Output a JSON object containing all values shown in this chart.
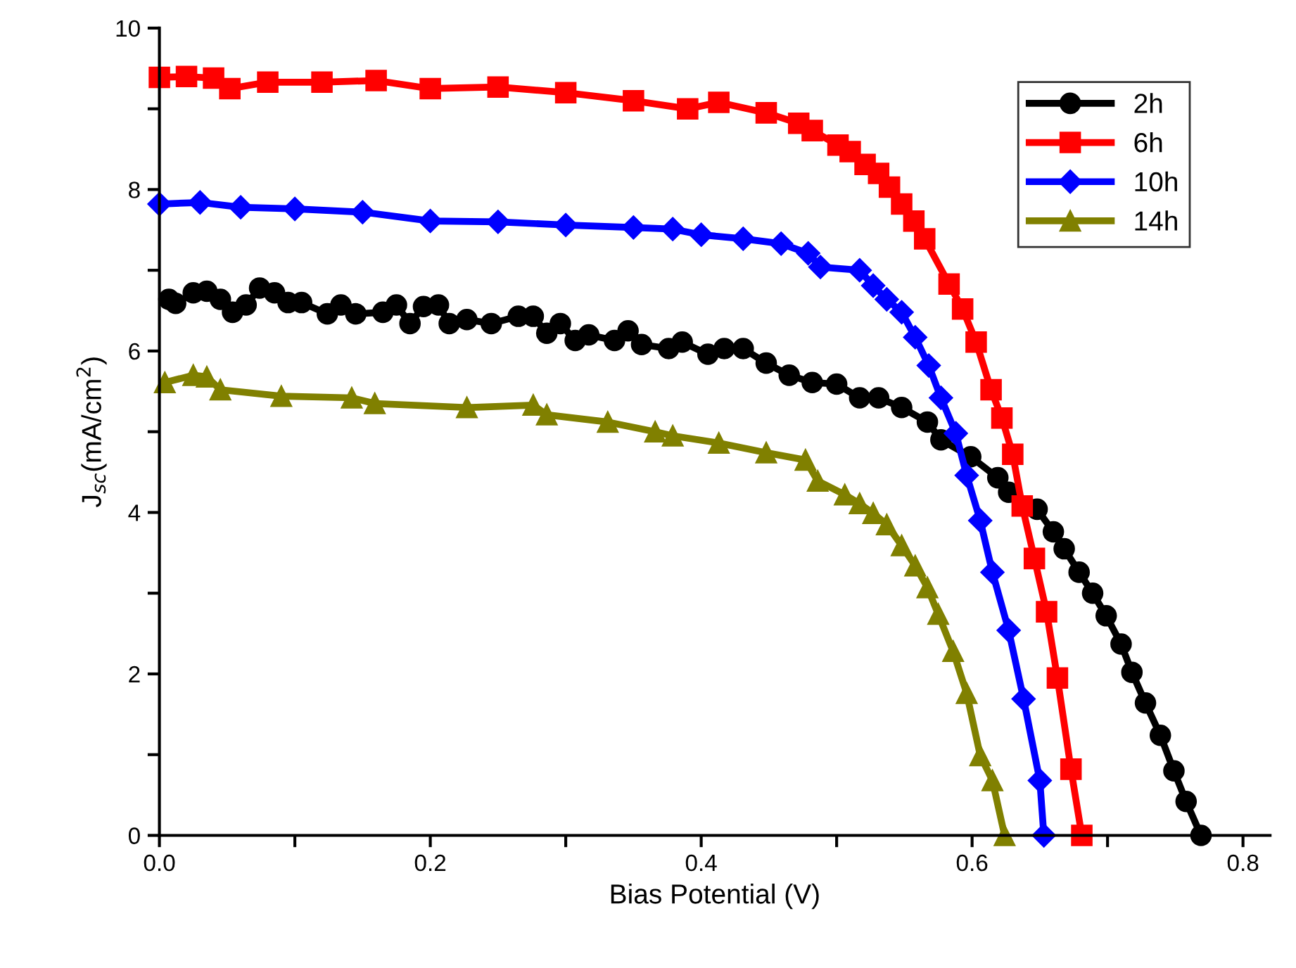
{
  "chart_data": {
    "type": "line",
    "xlabel": "Bias Potential (V)",
    "ylabel": "J$_{sc}$(mA/cm$^{2}$)",
    "xlim": [
      0,
      0.82
    ],
    "ylim": [
      0,
      10
    ],
    "xticks": [
      {
        "value": 0,
        "label": "0.0"
      },
      {
        "value": 0.1,
        "label": null
      },
      {
        "value": 0.2,
        "label": "0.2"
      },
      {
        "value": 0.3,
        "label": null
      },
      {
        "value": 0.4,
        "label": "0.4"
      },
      {
        "value": 0.5,
        "label": null
      },
      {
        "value": 0.6,
        "label": "0.6"
      },
      {
        "value": 0.7,
        "label": null
      },
      {
        "value": 0.8,
        "label": "0.8"
      }
    ],
    "yticks": [
      0,
      {
        "value": 1,
        "label": null
      },
      2,
      {
        "value": 3,
        "label": null
      },
      4,
      {
        "value": 5,
        "label": null
      },
      6,
      {
        "value": 7,
        "label": null
      },
      8,
      {
        "value": 9,
        "label": null
      },
      10
    ],
    "grid": false,
    "legend": "top right",
    "line_style": "solid",
    "series": [
      {
        "name": "2h",
        "color": "#000000",
        "marker": "circle",
        "x": [
          0.007,
          0.012,
          0.025,
          0.035,
          0.045,
          0.054,
          0.064,
          0.074,
          0.085,
          0.095,
          0.105,
          0.124,
          0.134,
          0.145,
          0.165,
          0.175,
          0.185,
          0.195,
          0.206,
          0.214,
          0.227,
          0.245,
          0.265,
          0.276,
          0.286,
          0.296,
          0.307,
          0.317,
          0.336,
          0.346,
          0.356,
          0.376,
          0.386,
          0.405,
          0.417,
          0.431,
          0.448,
          0.465,
          0.482,
          0.5,
          0.517,
          0.531,
          0.548,
          0.567,
          0.577,
          0.599,
          0.619,
          0.627,
          0.648,
          0.66,
          0.668,
          0.679,
          0.689,
          0.699,
          0.71,
          0.718,
          0.728,
          0.739,
          0.749,
          0.758,
          0.769
        ],
        "values": [
          6.64,
          6.59,
          6.72,
          6.74,
          6.64,
          6.48,
          6.57,
          6.78,
          6.72,
          6.6,
          6.6,
          6.46,
          6.57,
          6.46,
          6.48,
          6.57,
          6.34,
          6.55,
          6.57,
          6.34,
          6.39,
          6.34,
          6.43,
          6.43,
          6.22,
          6.34,
          6.13,
          6.2,
          6.13,
          6.25,
          6.08,
          6.03,
          6.11,
          5.96,
          6.03,
          6.03,
          5.85,
          5.7,
          5.61,
          5.59,
          5.42,
          5.42,
          5.3,
          5.12,
          4.9,
          4.69,
          4.43,
          4.25,
          4.04,
          3.76,
          3.55,
          3.26,
          3.0,
          2.72,
          2.37,
          2.02,
          1.64,
          1.24,
          0.8,
          0.42,
          0
        ]
      },
      {
        "name": "6h",
        "color": "#ff0000",
        "marker": "square",
        "x": [
          0.0,
          0.02,
          0.04,
          0.052,
          0.08,
          0.12,
          0.16,
          0.2,
          0.25,
          0.3,
          0.35,
          0.39,
          0.413,
          0.448,
          0.472,
          0.482,
          0.501,
          0.51,
          0.521,
          0.531,
          0.539,
          0.548,
          0.557,
          0.565,
          0.583,
          0.593,
          0.603,
          0.614,
          0.622,
          0.63,
          0.637,
          0.646,
          0.655,
          0.663,
          0.673,
          0.681
        ],
        "values": [
          9.39,
          9.4,
          9.38,
          9.25,
          9.33,
          9.33,
          9.35,
          9.25,
          9.27,
          9.2,
          9.1,
          9.0,
          9.08,
          8.95,
          8.82,
          8.73,
          8.55,
          8.47,
          8.31,
          8.2,
          8.03,
          7.82,
          7.61,
          7.39,
          6.83,
          6.52,
          6.11,
          5.52,
          5.17,
          4.72,
          4.08,
          3.43,
          2.77,
          1.95,
          0.82,
          0
        ]
      },
      {
        "name": "10h",
        "color": "#0000ff",
        "marker": "diamond",
        "x": [
          0.0,
          0.03,
          0.06,
          0.1,
          0.15,
          0.2,
          0.25,
          0.3,
          0.35,
          0.379,
          0.4,
          0.431,
          0.459,
          0.479,
          0.488,
          0.517,
          0.527,
          0.537,
          0.548,
          0.558,
          0.568,
          0.577,
          0.588,
          0.596,
          0.606,
          0.615,
          0.627,
          0.638,
          0.65,
          0.653
        ],
        "values": [
          7.82,
          7.84,
          7.78,
          7.76,
          7.72,
          7.61,
          7.6,
          7.56,
          7.53,
          7.51,
          7.44,
          7.39,
          7.33,
          7.21,
          7.04,
          7.0,
          6.81,
          6.64,
          6.48,
          6.17,
          5.82,
          5.42,
          4.98,
          4.46,
          3.9,
          3.26,
          2.54,
          1.69,
          0.68,
          0
        ]
      },
      {
        "name": "14h",
        "color": "#808000",
        "marker": "triangle",
        "x": [
          0.004,
          0.025,
          0.035,
          0.045,
          0.09,
          0.142,
          0.159,
          0.227,
          0.276,
          0.286,
          0.331,
          0.366,
          0.379,
          0.413,
          0.448,
          0.477,
          0.486,
          0.506,
          0.517,
          0.527,
          0.537,
          0.548,
          0.558,
          0.567,
          0.575,
          0.586,
          0.596,
          0.606,
          0.615,
          0.624
        ],
        "values": [
          5.61,
          5.7,
          5.68,
          5.52,
          5.44,
          5.42,
          5.35,
          5.3,
          5.33,
          5.21,
          5.12,
          5.0,
          4.95,
          4.86,
          4.74,
          4.65,
          4.39,
          4.22,
          4.11,
          3.99,
          3.85,
          3.59,
          3.34,
          3.07,
          2.74,
          2.28,
          1.76,
          0.99,
          0.68,
          0
        ]
      }
    ]
  }
}
